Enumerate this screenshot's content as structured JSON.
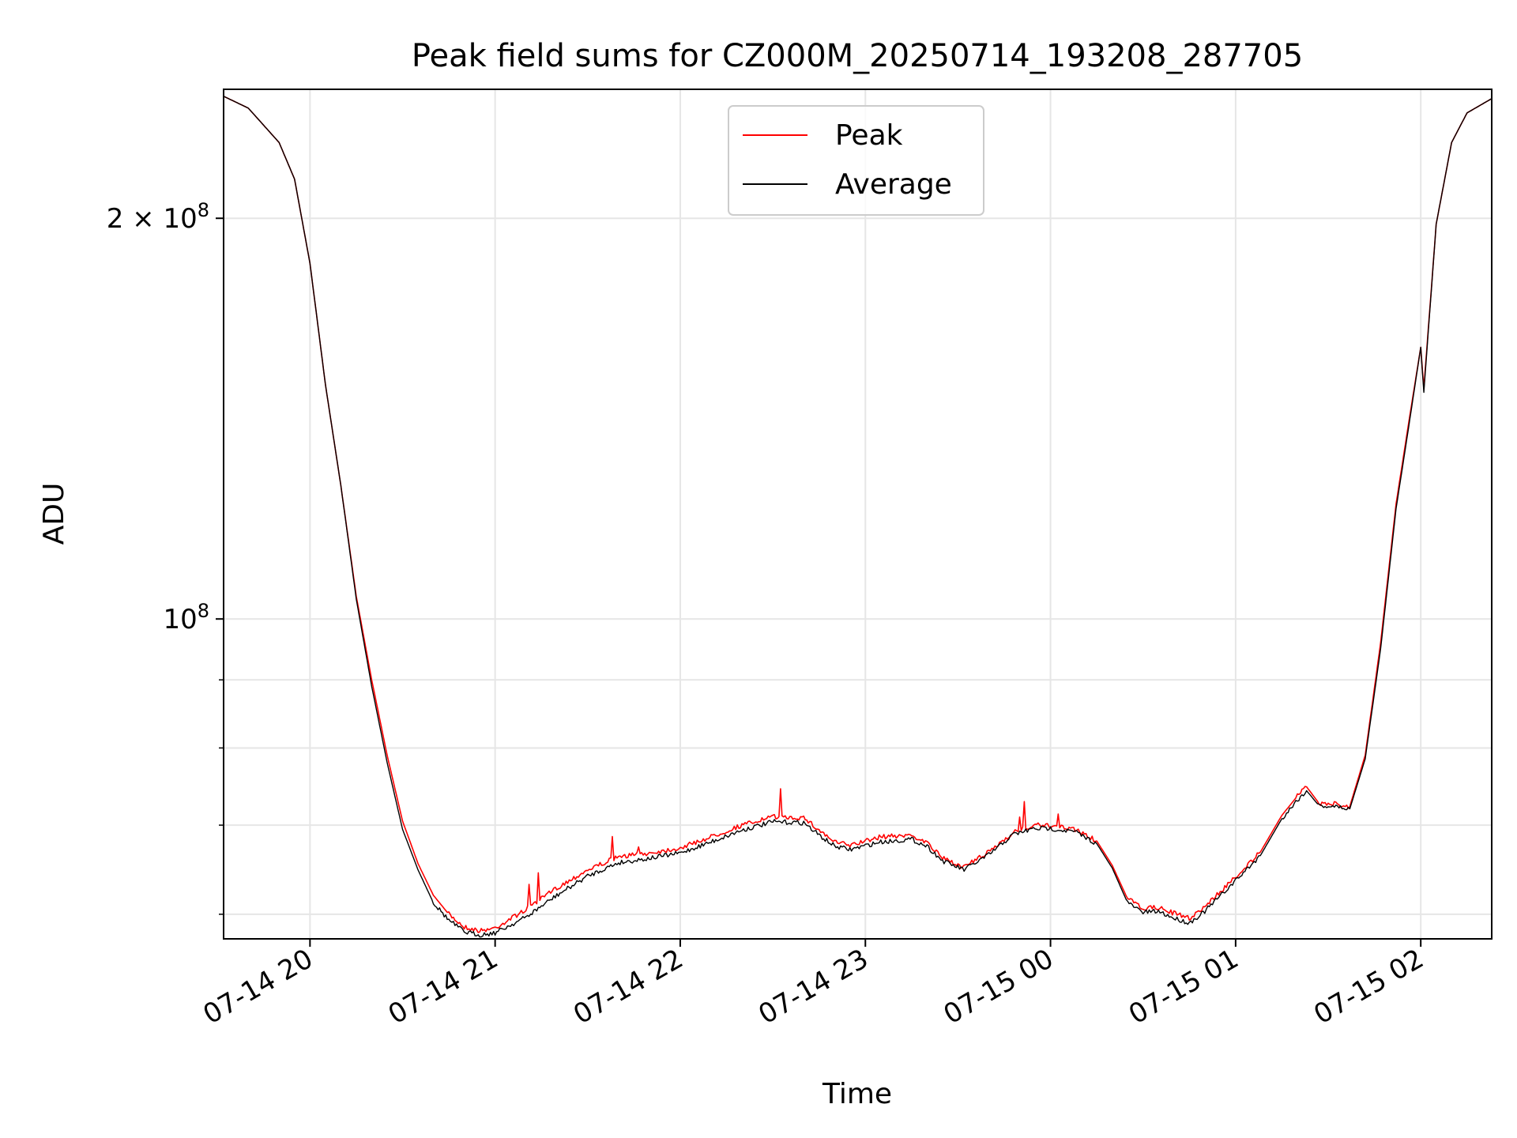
{
  "chart_data": {
    "type": "line",
    "title": "Peak field sums for CZ000M_20250714_193208_287705",
    "xlabel": "Time",
    "ylabel": "ADU",
    "yscale": "log",
    "ylim": [
      57500000,
      250000000
    ],
    "xlim": [
      "2025-07-14 19:32",
      "2025-07-15 02:23"
    ],
    "grid": true,
    "legend_position": "upper center",
    "x_ticks": [
      {
        "t": "2025-07-14 20:00",
        "label": "07-14 20"
      },
      {
        "t": "2025-07-14 21:00",
        "label": "07-14 21"
      },
      {
        "t": "2025-07-14 22:00",
        "label": "07-14 22"
      },
      {
        "t": "2025-07-14 23:00",
        "label": "07-14 23"
      },
      {
        "t": "2025-07-15 00:00",
        "label": "07-15 00"
      },
      {
        "t": "2025-07-15 01:00",
        "label": "07-15 01"
      },
      {
        "t": "2025-07-15 02:00",
        "label": "07-15 02"
      }
    ],
    "y_major_ticks": [
      {
        "value": 100000000,
        "base": "10",
        "exp": "8",
        "mult": ""
      },
      {
        "value": 200000000,
        "base": "10",
        "exp": "8",
        "mult": "2 × "
      }
    ],
    "y_minor_ticks": [
      60000000,
      70000000,
      80000000,
      90000000
    ],
    "series": [
      {
        "name": "Peak",
        "color": "#ff0000",
        "points": [
          [
            "2025-07-14 19:32",
            247000000
          ],
          [
            "2025-07-14 19:40",
            242000000
          ],
          [
            "2025-07-14 19:50",
            228000000
          ],
          [
            "2025-07-14 19:55",
            214000000
          ],
          [
            "2025-07-14 20:00",
            185000000
          ],
          [
            "2025-07-14 20:05",
            150000000
          ],
          [
            "2025-07-14 20:10",
            126000000
          ],
          [
            "2025-07-14 20:15",
            104000000
          ],
          [
            "2025-07-14 20:20",
            90000000
          ],
          [
            "2025-07-14 20:25",
            79000000
          ],
          [
            "2025-07-14 20:30",
            70500000
          ],
          [
            "2025-07-14 20:35",
            65500000
          ],
          [
            "2025-07-14 20:40",
            62000000
          ],
          [
            "2025-07-14 20:45",
            60000000
          ],
          [
            "2025-07-14 20:50",
            58700000
          ],
          [
            "2025-07-14 20:55",
            58300000
          ],
          [
            "2025-07-14 21:00",
            58600000
          ],
          [
            "2025-07-14 21:10",
            60500000
          ],
          [
            "2025-07-14 21:20",
            62800000
          ],
          [
            "2025-07-14 21:30",
            64800000
          ],
          [
            "2025-07-14 21:40",
            66300000
          ],
          [
            "2025-07-14 21:50",
            66700000
          ],
          [
            "2025-07-14 22:00",
            67300000
          ],
          [
            "2025-07-14 22:10",
            68600000
          ],
          [
            "2025-07-14 22:20",
            70000000
          ],
          [
            "2025-07-14 22:30",
            71000000
          ],
          [
            "2025-07-14 22:40",
            70900000
          ],
          [
            "2025-07-14 22:45",
            69400000
          ],
          [
            "2025-07-14 22:50",
            68000000
          ],
          [
            "2025-07-14 22:55",
            67600000
          ],
          [
            "2025-07-14 23:05",
            68600000
          ],
          [
            "2025-07-14 23:15",
            68800000
          ],
          [
            "2025-07-14 23:20",
            67900000
          ],
          [
            "2025-07-14 23:25",
            66100000
          ],
          [
            "2025-07-14 23:32",
            65100000
          ],
          [
            "2025-07-14 23:40",
            66800000
          ],
          [
            "2025-07-14 23:48",
            69200000
          ],
          [
            "2025-07-14 23:55",
            70000000
          ],
          [
            "2025-07-15 00:00",
            69900000
          ],
          [
            "2025-07-15 00:08",
            69500000
          ],
          [
            "2025-07-15 00:15",
            68100000
          ],
          [
            "2025-07-15 00:20",
            65300000
          ],
          [
            "2025-07-15 00:25",
            61600000
          ],
          [
            "2025-07-15 00:30",
            60600000
          ],
          [
            "2025-07-15 00:35",
            60700000
          ],
          [
            "2025-07-15 00:40",
            60100000
          ],
          [
            "2025-07-15 00:45",
            59600000
          ],
          [
            "2025-07-15 00:50",
            60800000
          ],
          [
            "2025-07-15 01:00",
            64000000
          ],
          [
            "2025-07-15 01:08",
            66800000
          ],
          [
            "2025-07-15 01:15",
            71200000
          ],
          [
            "2025-07-15 01:20",
            73600000
          ],
          [
            "2025-07-15 01:23",
            74800000
          ],
          [
            "2025-07-15 01:27",
            72700000
          ],
          [
            "2025-07-15 01:32",
            72600000
          ],
          [
            "2025-07-15 01:37",
            72300000
          ],
          [
            "2025-07-15 01:42",
            79000000
          ],
          [
            "2025-07-15 01:47",
            96000000
          ],
          [
            "2025-07-15 01:52",
            122000000
          ],
          [
            "2025-07-15 01:56",
            140000000
          ],
          [
            "2025-07-15 02:00",
            160000000
          ],
          [
            "2025-07-15 02:01",
            149000000
          ],
          [
            "2025-07-15 02:05",
            198000000
          ],
          [
            "2025-07-15 02:10",
            228000000
          ],
          [
            "2025-07-15 02:15",
            240000000
          ],
          [
            "2025-07-15 02:23",
            246000000
          ]
        ]
      },
      {
        "name": "Average",
        "color": "#000000",
        "points": [
          [
            "2025-07-14 19:32",
            247000000
          ],
          [
            "2025-07-14 19:40",
            242000000
          ],
          [
            "2025-07-14 19:50",
            228000000
          ],
          [
            "2025-07-14 19:55",
            214000000
          ],
          [
            "2025-07-14 20:00",
            185000000
          ],
          [
            "2025-07-14 20:05",
            150000000
          ],
          [
            "2025-07-14 20:10",
            126000000
          ],
          [
            "2025-07-14 20:15",
            103500000
          ],
          [
            "2025-07-14 20:20",
            89000000
          ],
          [
            "2025-07-14 20:25",
            78000000
          ],
          [
            "2025-07-14 20:30",
            69500000
          ],
          [
            "2025-07-14 20:35",
            64800000
          ],
          [
            "2025-07-14 20:40",
            61200000
          ],
          [
            "2025-07-14 20:45",
            59400000
          ],
          [
            "2025-07-14 20:50",
            58200000
          ],
          [
            "2025-07-14 20:55",
            57900000
          ],
          [
            "2025-07-14 21:00",
            58100000
          ],
          [
            "2025-07-14 21:10",
            59700000
          ],
          [
            "2025-07-14 21:20",
            62000000
          ],
          [
            "2025-07-14 21:30",
            64100000
          ],
          [
            "2025-07-14 21:40",
            65600000
          ],
          [
            "2025-07-14 21:50",
            66100000
          ],
          [
            "2025-07-14 22:00",
            66700000
          ],
          [
            "2025-07-14 22:10",
            68000000
          ],
          [
            "2025-07-14 22:20",
            69400000
          ],
          [
            "2025-07-14 22:30",
            70400000
          ],
          [
            "2025-07-14 22:40",
            70300000
          ],
          [
            "2025-07-14 22:45",
            68800000
          ],
          [
            "2025-07-14 22:50",
            67500000
          ],
          [
            "2025-07-14 22:55",
            67100000
          ],
          [
            "2025-07-14 23:05",
            68000000
          ],
          [
            "2025-07-14 23:15",
            68300000
          ],
          [
            "2025-07-14 23:20",
            67500000
          ],
          [
            "2025-07-14 23:25",
            65800000
          ],
          [
            "2025-07-14 23:32",
            64800000
          ],
          [
            "2025-07-14 23:40",
            66500000
          ],
          [
            "2025-07-14 23:48",
            68900000
          ],
          [
            "2025-07-14 23:55",
            69600000
          ],
          [
            "2025-07-15 00:00",
            69600000
          ],
          [
            "2025-07-15 00:08",
            69200000
          ],
          [
            "2025-07-15 00:15",
            67800000
          ],
          [
            "2025-07-15 00:20",
            65000000
          ],
          [
            "2025-07-15 00:25",
            61200000
          ],
          [
            "2025-07-15 00:30",
            60200000
          ],
          [
            "2025-07-15 00:35",
            60300000
          ],
          [
            "2025-07-15 00:40",
            59600000
          ],
          [
            "2025-07-15 00:45",
            59100000
          ],
          [
            "2025-07-15 00:50",
            60300000
          ],
          [
            "2025-07-15 01:00",
            63600000
          ],
          [
            "2025-07-15 01:08",
            66400000
          ],
          [
            "2025-07-15 01:15",
            70800000
          ],
          [
            "2025-07-15 01:20",
            73100000
          ],
          [
            "2025-07-15 01:23",
            74300000
          ],
          [
            "2025-07-15 01:27",
            72400000
          ],
          [
            "2025-07-15 01:32",
            72300000
          ],
          [
            "2025-07-15 01:37",
            72000000
          ],
          [
            "2025-07-15 01:42",
            78500000
          ],
          [
            "2025-07-15 01:47",
            95000000
          ],
          [
            "2025-07-15 01:52",
            121000000
          ],
          [
            "2025-07-15 01:56",
            139000000
          ],
          [
            "2025-07-15 02:00",
            160000000
          ],
          [
            "2025-07-15 02:01",
            148000000
          ],
          [
            "2025-07-15 02:05",
            198000000
          ],
          [
            "2025-07-15 02:10",
            228000000
          ],
          [
            "2025-07-15 02:15",
            240000000
          ],
          [
            "2025-07-15 02:23",
            246000000
          ]
        ]
      }
    ]
  }
}
